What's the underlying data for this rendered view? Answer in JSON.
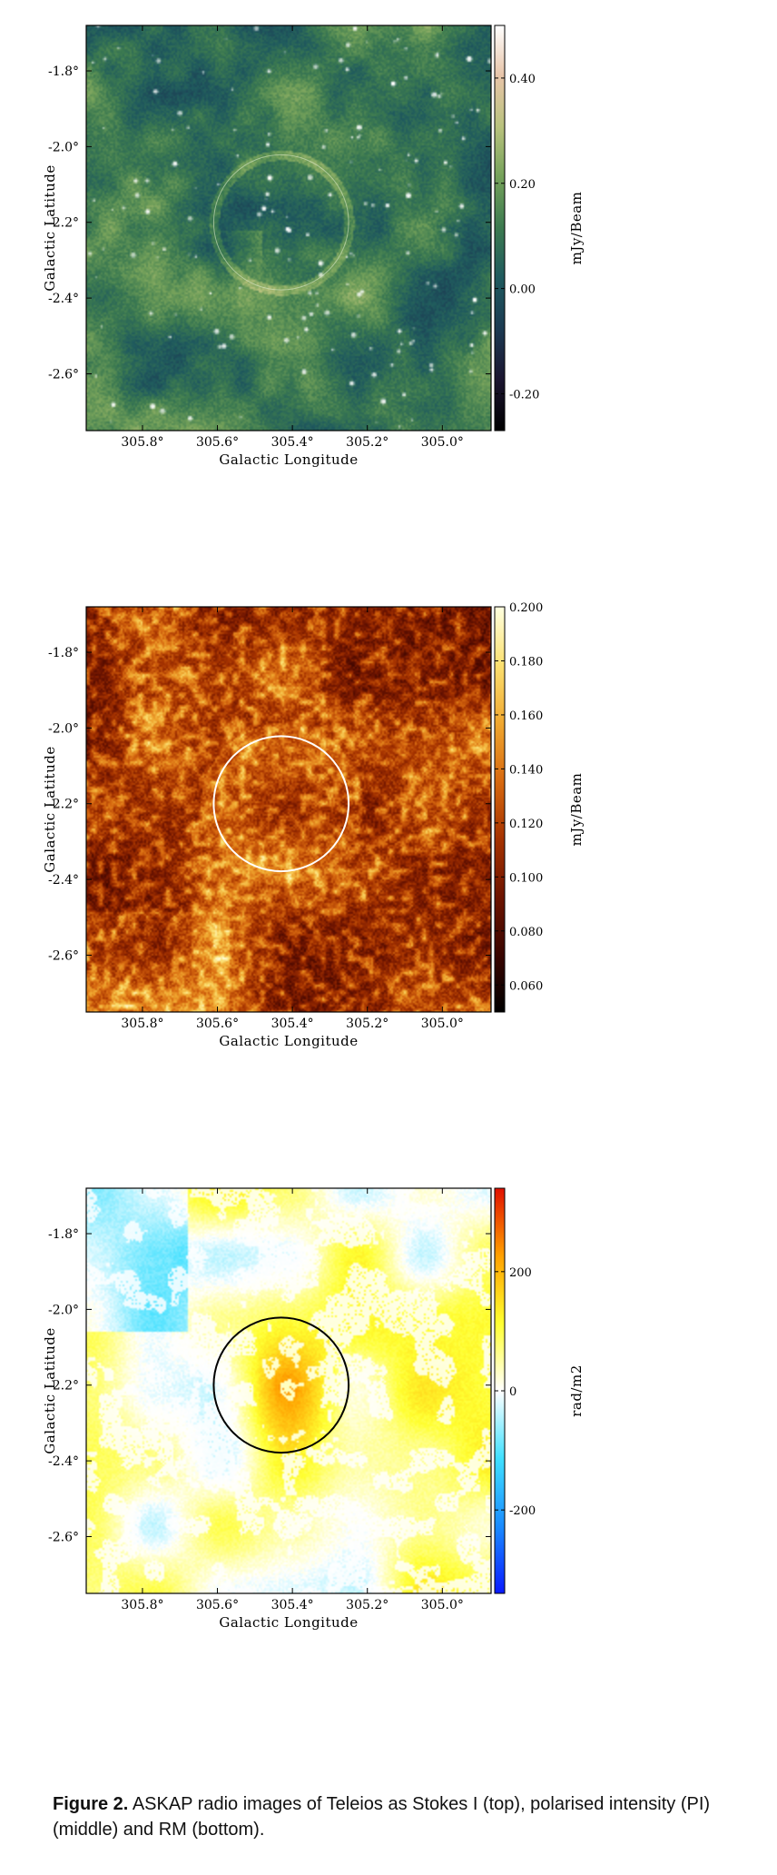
{
  "chart_data": [
    {
      "type": "heatmap",
      "title": "",
      "xlabel": "Galactic Longitude",
      "ylabel": "Galactic Latitude",
      "xlim": [
        305.95,
        304.87
      ],
      "ylim": [
        -2.75,
        -1.68
      ],
      "x_ticks": [
        305.8,
        305.6,
        305.4,
        305.2,
        305.0
      ],
      "x_tick_labels": [
        "305.8°",
        "305.6°",
        "305.4°",
        "305.2°",
        "305.0°"
      ],
      "y_ticks": [
        -1.8,
        -2.0,
        -2.2,
        -2.4,
        -2.6
      ],
      "y_tick_labels": [
        "-1.8°",
        "-2.0°",
        "-2.2°",
        "-2.4°",
        "-2.6°"
      ],
      "colorbar": {
        "label": "mJy/Beam",
        "range": [
          -0.27,
          0.5
        ],
        "ticks": [
          0.4,
          0.2,
          0.0,
          -0.2
        ],
        "tick_labels": [
          "0.40",
          "0.20",
          "0.00",
          "-0.20"
        ],
        "colormap": [
          "#000000",
          "#1b1530",
          "#1c3a52",
          "#1f5a5e",
          "#3c7a50",
          "#74a15a",
          "#b9c27d",
          "#e7c4a8",
          "#ffffff"
        ]
      },
      "circle": {
        "center_l": 305.43,
        "center_b": -2.2,
        "radius_deg": 0.18,
        "color": "#d8e8c8"
      },
      "colormap_name": "stokes-i-green"
    },
    {
      "type": "heatmap",
      "title": "",
      "xlabel": "Galactic Longitude",
      "ylabel": "Galactic Latitude",
      "xlim": [
        305.95,
        304.87
      ],
      "ylim": [
        -2.75,
        -1.68
      ],
      "x_ticks": [
        305.8,
        305.6,
        305.4,
        305.2,
        305.0
      ],
      "x_tick_labels": [
        "305.8°",
        "305.6°",
        "305.4°",
        "305.2°",
        "305.0°"
      ],
      "y_ticks": [
        -1.8,
        -2.0,
        -2.2,
        -2.4,
        -2.6
      ],
      "y_tick_labels": [
        "-1.8°",
        "-2.0°",
        "-2.2°",
        "-2.4°",
        "-2.6°"
      ],
      "colorbar": {
        "label": "mJy/Beam",
        "range": [
          0.05,
          0.2
        ],
        "ticks": [
          0.2,
          0.18,
          0.16,
          0.14,
          0.12,
          0.1,
          0.08,
          0.06
        ],
        "tick_labels": [
          "0.200",
          "0.180",
          "0.160",
          "0.140",
          "0.120",
          "0.100",
          "0.080",
          "0.060"
        ],
        "colormap": [
          "#000000",
          "#3a0500",
          "#6e1400",
          "#a63300",
          "#d86a10",
          "#f0a830",
          "#fbe070",
          "#ffffe0"
        ]
      },
      "circle": {
        "center_l": 305.43,
        "center_b": -2.2,
        "radius_deg": 0.18,
        "color": "#ffffff"
      },
      "colormap_name": "afmhot"
    },
    {
      "type": "heatmap",
      "title": "",
      "xlabel": "Galactic Longitude",
      "ylabel": "Galactic Latitude",
      "xlim": [
        305.95,
        304.87
      ],
      "ylim": [
        -2.75,
        -1.68
      ],
      "x_ticks": [
        305.8,
        305.6,
        305.4,
        305.2,
        305.0
      ],
      "x_tick_labels": [
        "305.8°",
        "305.6°",
        "305.4°",
        "305.2°",
        "305.0°"
      ],
      "y_ticks": [
        -1.8,
        -2.0,
        -2.2,
        -2.4,
        -2.6
      ],
      "y_tick_labels": [
        "-1.8°",
        "-2.0°",
        "-2.2°",
        "-2.4°",
        "-2.6°"
      ],
      "colorbar": {
        "label": "rad/m2",
        "range": [
          -340,
          340
        ],
        "ticks": [
          200,
          0,
          -200
        ],
        "tick_labels": [
          "200",
          "0",
          "-200"
        ],
        "colormap": [
          "#0a1aff",
          "#1a8cff",
          "#40e0ff",
          "#ffffff",
          "#ffff30",
          "#ffa000",
          "#e01000"
        ]
      },
      "circle": {
        "center_l": 305.43,
        "center_b": -2.2,
        "radius_deg": 0.18,
        "color": "#000000"
      },
      "colormap_name": "rm-diverging"
    }
  ],
  "caption": {
    "label": "Figure 2.",
    "text": " ASKAP radio images of Teleios as Stokes I (top), polarised intensity (PI) (middle) and RM (bottom)."
  }
}
